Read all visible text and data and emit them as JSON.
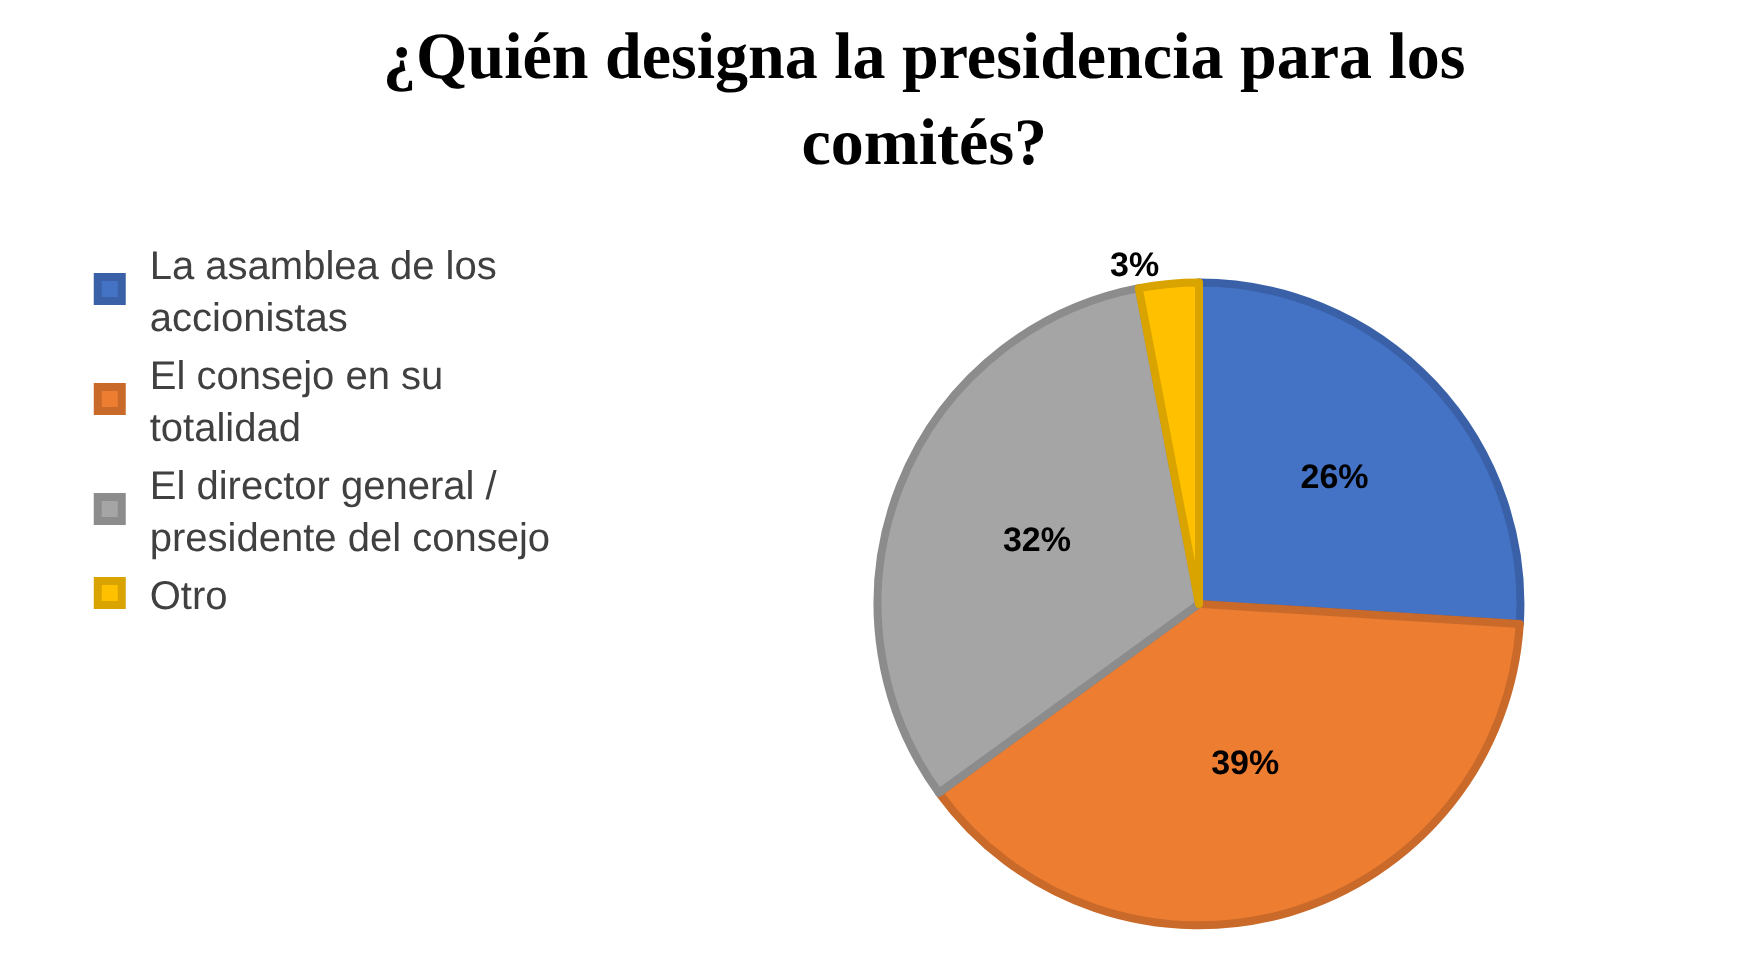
{
  "chart_data": {
    "type": "pie",
    "title": "¿Quién designa la presidencia para los comités?",
    "categories": [
      "La asamblea de los accionistas",
      "El consejo en su totalidad",
      "El director general / presidente del consejo",
      "Otro"
    ],
    "values": [
      26,
      39,
      32,
      3
    ],
    "colors": [
      "#4472c4",
      "#ed7d31",
      "#a5a5a5",
      "#ffc000"
    ],
    "value_labels": [
      "26%",
      "39%",
      "32%",
      "3%"
    ],
    "legend": "left"
  }
}
